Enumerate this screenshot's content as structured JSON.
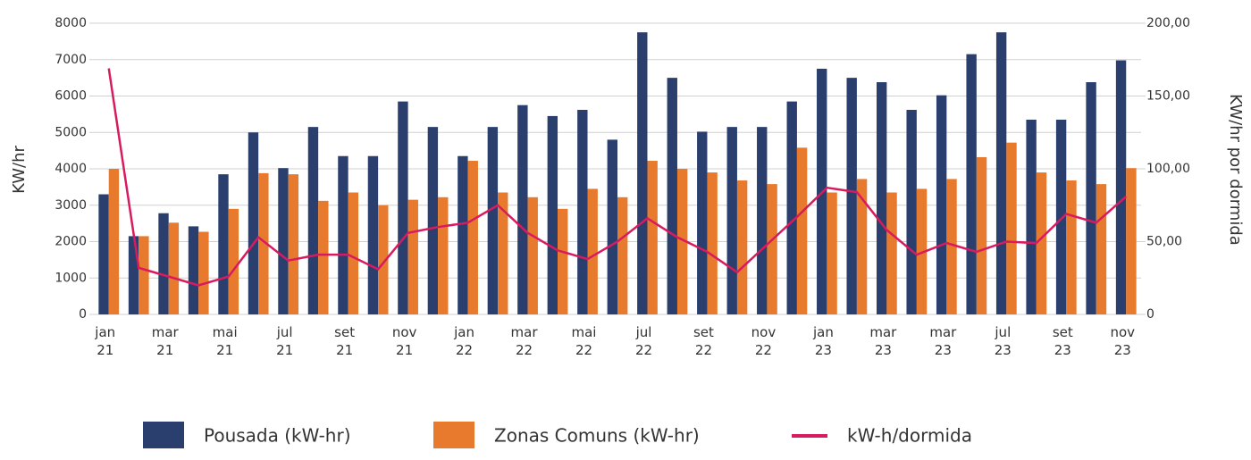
{
  "chart_data": {
    "type": "bar",
    "title": null,
    "y_label": "KW/hr",
    "y2_label": "KW/hr por dormida",
    "categories": [
      "jan\n21",
      null,
      "mar\n21",
      null,
      "mai\n21",
      null,
      "jul\n21",
      null,
      "set\n21",
      null,
      "nov\n21",
      null,
      "jan\n22",
      null,
      "mar\n22",
      null,
      "mai\n22",
      null,
      "jul\n22",
      null,
      "set\n22",
      null,
      "nov\n22",
      null,
      "jan\n23",
      null,
      "mar\n23",
      null,
      "mar\n23",
      null,
      "jul\n23",
      null,
      "set\n23",
      null,
      "nov\n23"
    ],
    "series": [
      {
        "name": "Pousada (kW-hr)",
        "type": "bar",
        "color": "#2a3f6e",
        "values": [
          3300,
          2150,
          2780,
          2420,
          3850,
          5000,
          4020,
          5150,
          4350,
          4350,
          5850,
          5150,
          4350,
          5150,
          5750,
          5450,
          5620,
          4800,
          7750,
          6500,
          5020,
          5150,
          5150,
          5850,
          6750,
          6500,
          6380,
          5620,
          6020,
          7150,
          7750,
          5350,
          5350,
          6380,
          6980
        ]
      },
      {
        "name": "Zonas Comuns (kW-hr)",
        "type": "bar",
        "color": "#e87a2d",
        "values": [
          4000,
          2150,
          2520,
          2270,
          2900,
          3880,
          3850,
          3120,
          3350,
          3000,
          3150,
          3220,
          4220,
          3350,
          3220,
          2900,
          3450,
          3220,
          4220,
          4000,
          3900,
          3680,
          3580,
          4580,
          3350,
          3720,
          3350,
          3450,
          3720,
          4320,
          4720,
          3900,
          3680,
          3580,
          4020
        ]
      },
      {
        "name": "kW-h/dormida",
        "type": "line",
        "axis": "y2",
        "color": "#d81b5e",
        "values": [
          169,
          32,
          26,
          20,
          26,
          53,
          37,
          41,
          41,
          31,
          56,
          60,
          63,
          75,
          56,
          44,
          38,
          50,
          66,
          53,
          43,
          29,
          48,
          67,
          87,
          84,
          58,
          41,
          49,
          43,
          50,
          49,
          69,
          63,
          81
        ]
      }
    ],
    "ylim": [
      0,
      8000
    ],
    "yticks": [
      0,
      1000,
      2000,
      3000,
      4000,
      5000,
      6000,
      7000,
      8000
    ],
    "y2lim": [
      0,
      200
    ],
    "y2ticks": [
      0,
      {
        "value": 50,
        "label": "50,00"
      },
      {
        "value": 100,
        "label": "100,00"
      },
      {
        "value": 150,
        "label": "150,00"
      },
      {
        "value": 200,
        "label": "200,00"
      }
    ],
    "grid": true,
    "legend": "bottom"
  }
}
